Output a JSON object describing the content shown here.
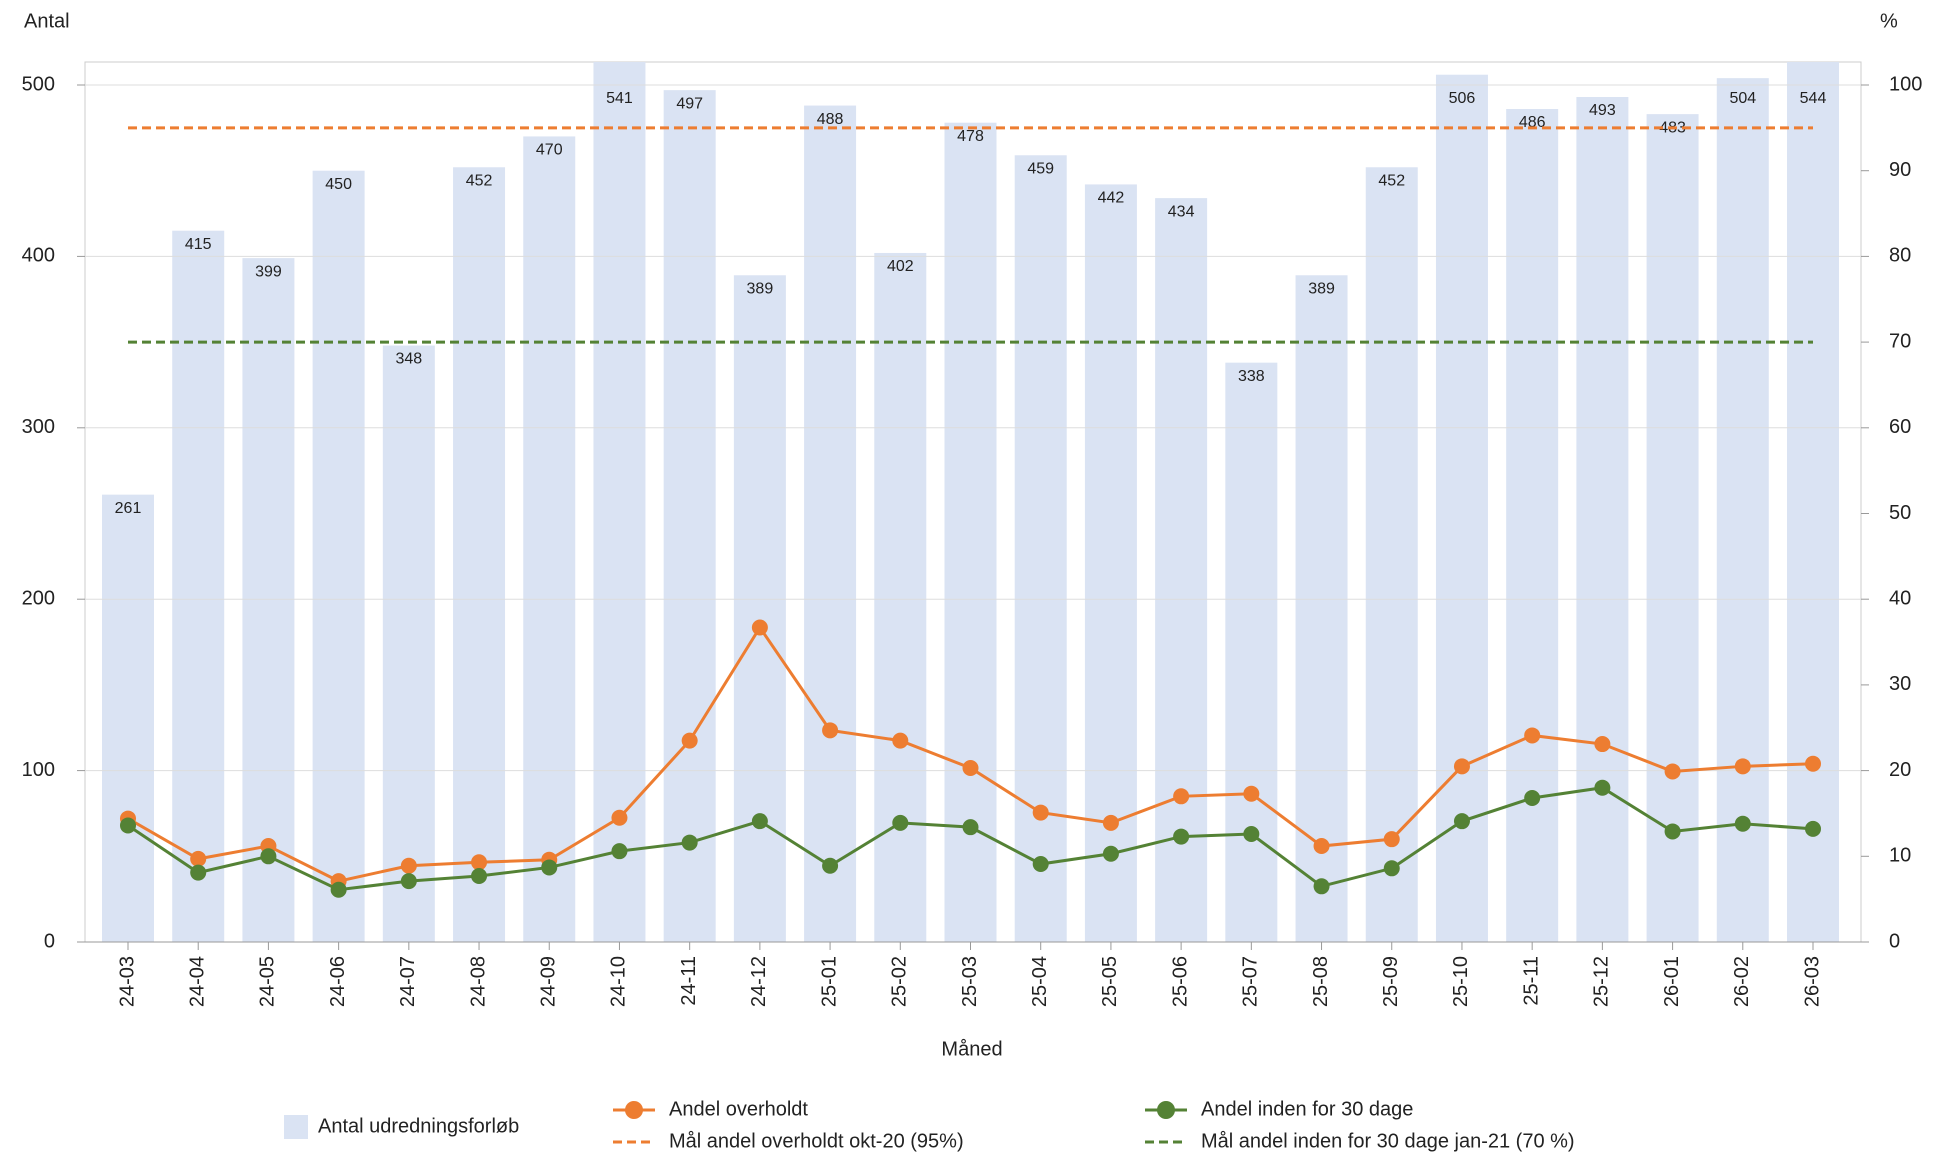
{
  "chart_data": {
    "type": "bar-line",
    "y_label": "Antal",
    "y2_label": "%",
    "x_label": "Måned",
    "categories": [
      "24-03",
      "24-04",
      "24-05",
      "24-06",
      "24-07",
      "24-08",
      "24-09",
      "24-10",
      "24-11",
      "24-12",
      "25-01",
      "25-02",
      "25-03",
      "25-04",
      "25-05",
      "25-06",
      "25-07",
      "25-08",
      "25-09",
      "25-10",
      "25-11",
      "25-12",
      "26-01",
      "26-02",
      "26-03"
    ],
    "ylim": [
      0,
      500
    ],
    "yticks": [
      0,
      100,
      200,
      300,
      400,
      500
    ],
    "y2lim": [
      0,
      100
    ],
    "y2ticks": [
      0,
      10,
      20,
      30,
      40,
      50,
      60,
      70,
      80,
      90,
      100
    ],
    "series": [
      {
        "name": "Antal udredningsforløb",
        "kind": "bar",
        "color": "#dae3f3",
        "values": [
          261,
          415,
          399,
          450,
          348,
          452,
          470,
          541,
          497,
          389,
          488,
          402,
          478,
          459,
          442,
          434,
          338,
          389,
          452,
          506,
          486,
          493,
          483,
          504,
          544
        ]
      },
      {
        "name": "Andel overholdt",
        "kind": "line",
        "axis": "y2",
        "color": "#ed7d31",
        "values": [
          14.4,
          9.7,
          11.2,
          7.1,
          8.9,
          9.3,
          9.6,
          14.5,
          23.5,
          36.7,
          24.7,
          23.5,
          20.3,
          15.1,
          13.9,
          17.0,
          17.3,
          11.2,
          12.0,
          20.5,
          24.1,
          23.1,
          19.9,
          20.5,
          20.8
        ]
      },
      {
        "name": "Andel inden for 30 dage",
        "kind": "line",
        "axis": "y2",
        "color": "#548235",
        "values": [
          13.6,
          8.1,
          10.0,
          6.1,
          7.1,
          7.7,
          8.7,
          10.6,
          11.6,
          14.1,
          8.9,
          13.9,
          13.4,
          9.1,
          10.3,
          12.3,
          12.6,
          6.5,
          8.6,
          14.1,
          16.8,
          18.0,
          12.9,
          13.8,
          13.2
        ]
      },
      {
        "name": "Mål andel overholdt okt-20 (95%)",
        "kind": "target",
        "axis": "y2",
        "color": "#ed7d31",
        "value": 95
      },
      {
        "name": "Mål andel inden for 30 dage jan-21 (70 %)",
        "kind": "target",
        "axis": "y2",
        "color": "#548235",
        "value": 70
      }
    ]
  }
}
